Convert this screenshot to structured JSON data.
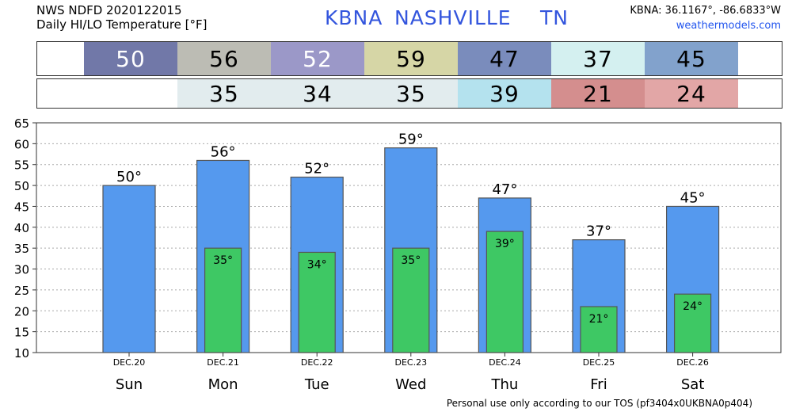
{
  "header": {
    "line1": "NWS NDFD 2020122015",
    "line2": "Daily HI/LO Temperature [°F]",
    "station_code": "KBNA",
    "station_name": "NASHVILLE",
    "state": "TN",
    "coords": "KBNA: 36.1167°, -86.6833°W",
    "site": "weathermodels.com"
  },
  "hi_strip": [
    {
      "value": "50",
      "color": "#7178a8"
    },
    {
      "value": "56",
      "color": "#bcbcb4"
    },
    {
      "value": "52",
      "color": "#9b98c8"
    },
    {
      "value": "59",
      "color": "#d6d6a6"
    },
    {
      "value": "47",
      "color": "#7a8cbc"
    },
    {
      "value": "37",
      "color": "#d4f0f0"
    },
    {
      "value": "45",
      "color": "#82a2cc"
    }
  ],
  "lo_strip": [
    {
      "value": "",
      "color": "#ffffff"
    },
    {
      "value": "35",
      "color": "#e2ecee"
    },
    {
      "value": "34",
      "color": "#e2ecee"
    },
    {
      "value": "35",
      "color": "#e2ecee"
    },
    {
      "value": "39",
      "color": "#b4e2ee"
    },
    {
      "value": "21",
      "color": "#d48e8e"
    },
    {
      "value": "24",
      "color": "#e2a6a6"
    }
  ],
  "chart_data": {
    "type": "bar",
    "categories": [
      "Sun",
      "Mon",
      "Tue",
      "Wed",
      "Thu",
      "Fri",
      "Sat"
    ],
    "dates": [
      "DEC.20",
      "DEC.21",
      "DEC.22",
      "DEC.23",
      "DEC.24",
      "DEC.25",
      "DEC.26"
    ],
    "series": [
      {
        "values": [
          50,
          56,
          52,
          59,
          47,
          37,
          45
        ],
        "color": "#5599ee"
      },
      {
        "values": [
          null,
          35,
          34,
          35,
          39,
          21,
          24
        ],
        "color": "#3ec864"
      }
    ],
    "hi_labels": [
      "50°",
      "56°",
      "52°",
      "59°",
      "47°",
      "37°",
      "45°"
    ],
    "lo_labels": [
      "",
      "35°",
      "34°",
      "35°",
      "39°",
      "21°",
      "24°"
    ],
    "ylim": [
      10,
      65
    ],
    "yticks": [
      "10",
      "15",
      "20",
      "25",
      "30",
      "35",
      "40",
      "45",
      "50",
      "55",
      "60",
      "65"
    ],
    "grid": true
  },
  "footer": "Personal use only according to our TOS (pf3404x0UKBNA0p404)"
}
